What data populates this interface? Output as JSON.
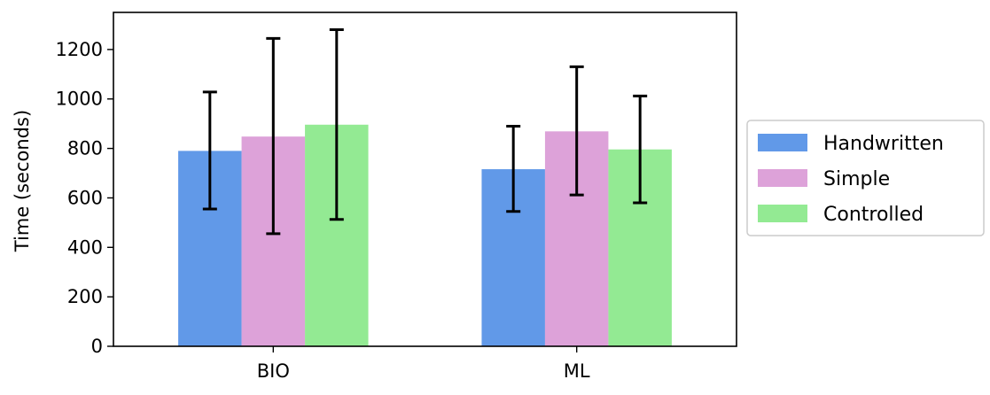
{
  "chart_data": {
    "type": "bar",
    "title": "",
    "xlabel": "",
    "ylabel": "Time (seconds)",
    "categories": [
      "BIO",
      "ML"
    ],
    "series": [
      {
        "name": "Handwritten",
        "color": "#6199e8",
        "values": [
          790,
          716
        ],
        "error_low": [
          555,
          545
        ],
        "error_high": [
          1028,
          890
        ]
      },
      {
        "name": "Simple",
        "color": "#dda2d9",
        "values": [
          848,
          869
        ],
        "error_low": [
          455,
          612
        ],
        "error_high": [
          1245,
          1130
        ]
      },
      {
        "name": "Controlled",
        "color": "#93ea93",
        "values": [
          896,
          796
        ],
        "error_low": [
          513,
          580
        ],
        "error_high": [
          1280,
          1012
        ]
      }
    ],
    "ylim": [
      0,
      1350
    ],
    "yticks": [
      0,
      200,
      400,
      600,
      800,
      1000,
      1200
    ],
    "grid": false,
    "legend_position": "right"
  }
}
